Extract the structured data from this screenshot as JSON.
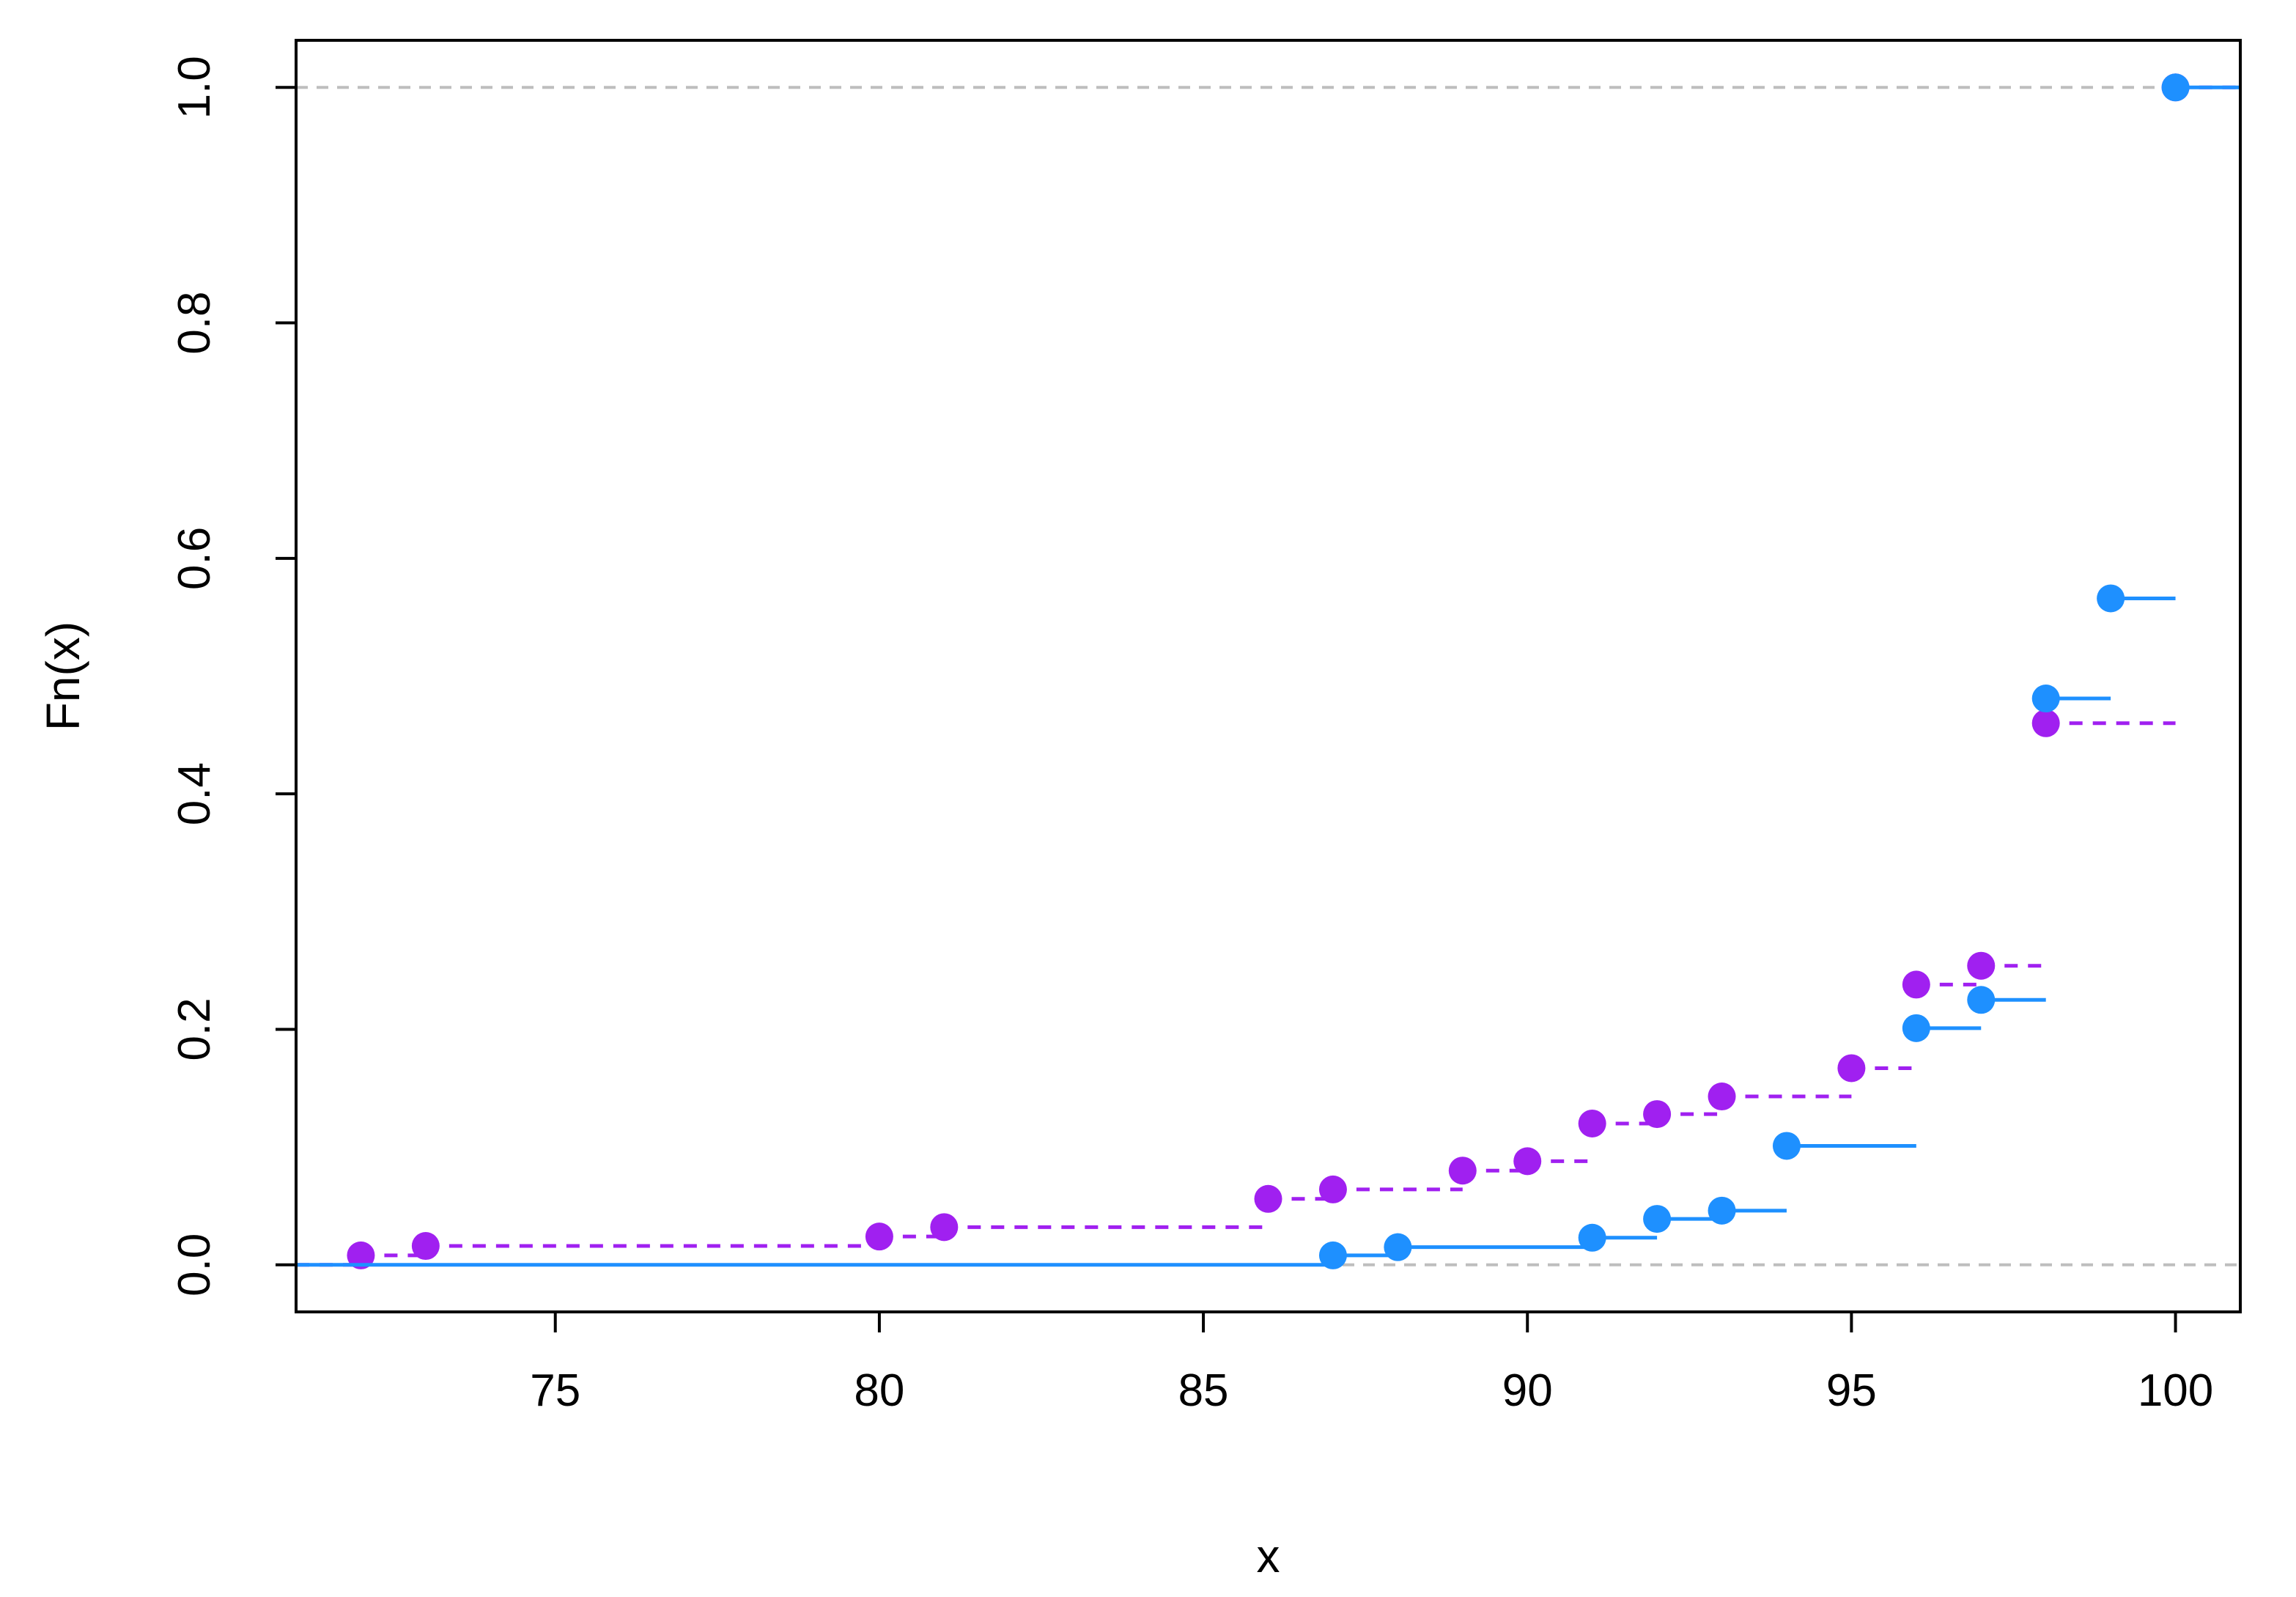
{
  "chart_data": {
    "type": "line",
    "step": true,
    "xlabel": "x",
    "ylabel": "Fn(x)",
    "xlim": [
      71,
      101
    ],
    "ylim": [
      -0.04,
      1.04
    ],
    "x_ticks": [
      75,
      80,
      85,
      90,
      95,
      100
    ],
    "y_ticks": [
      0.0,
      0.2,
      0.4,
      0.6,
      0.8,
      1.0
    ],
    "x_tick_labels": [
      "75",
      "80",
      "85",
      "90",
      "95",
      "100"
    ],
    "y_tick_labels": [
      "0.0",
      "0.2",
      "0.4",
      "0.6",
      "0.8",
      "1.0"
    ],
    "reference_lines_y": [
      0.0,
      1.0
    ],
    "grid": false,
    "series": [
      {
        "color": "#a020f0",
        "line_style": "dashed",
        "x": [
          72,
          73,
          80,
          81,
          86,
          87,
          89,
          90,
          91,
          92,
          93,
          95,
          96,
          97,
          98,
          100
        ],
        "y": [
          0.008,
          0.016,
          0.024,
          0.032,
          0.056,
          0.064,
          0.08,
          0.088,
          0.12,
          0.128,
          0.143,
          0.167,
          0.238,
          0.254,
          0.46,
          1.0
        ]
      },
      {
        "color": "#1e90ff",
        "line_style": "solid",
        "x": [
          87,
          88,
          91,
          92,
          93,
          94,
          96,
          97,
          98,
          99,
          100
        ],
        "y": [
          0.008,
          0.015,
          0.023,
          0.039,
          0.046,
          0.101,
          0.201,
          0.225,
          0.481,
          0.566,
          1.0
        ]
      }
    ]
  }
}
